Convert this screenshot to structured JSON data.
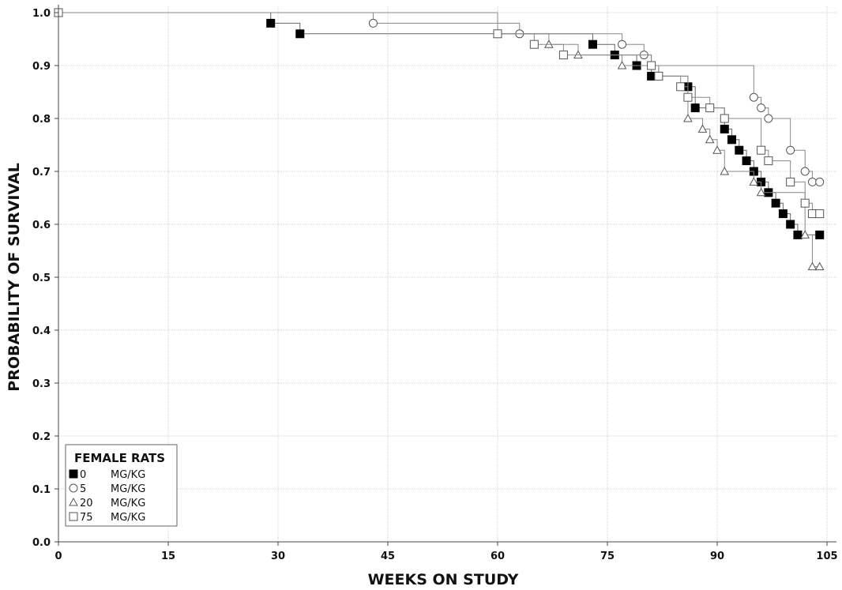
{
  "chart_data": {
    "type": "line",
    "title": "",
    "xlabel": "WEEKS ON STUDY",
    "ylabel": "PROBABILITY OF SURVIVAL",
    "xlim": [
      0,
      105
    ],
    "ylim": [
      0.0,
      1.0
    ],
    "xticks": [
      0,
      15,
      30,
      45,
      60,
      75,
      90,
      105
    ],
    "yticks": [
      "0.0",
      "0.1",
      "0.2",
      "0.3",
      "0.4",
      "0.5",
      "0.6",
      "0.7",
      "0.8",
      "0.9",
      "1.0"
    ],
    "grid": true,
    "legend": {
      "placement": "bottom-left",
      "title": "FEMALE RATS",
      "entries": [
        {
          "dose": "0",
          "unit": "MG/KG",
          "marker": "filled-square"
        },
        {
          "dose": "5",
          "unit": "MG/KG",
          "marker": "open-circle"
        },
        {
          "dose": "20",
          "unit": "MG/KG",
          "marker": "open-triangle"
        },
        {
          "dose": "75",
          "unit": "MG/KG",
          "marker": "open-square"
        }
      ]
    },
    "series": [
      {
        "marker": "filled-square",
        "color": "#000000",
        "x": [
          0,
          29,
          33,
          73,
          76,
          79,
          81,
          86,
          87,
          91,
          92,
          93,
          94,
          95,
          96,
          97,
          98,
          99,
          100,
          101,
          104
        ],
        "y": [
          1.0,
          0.98,
          0.96,
          0.94,
          0.92,
          0.9,
          0.88,
          0.86,
          0.82,
          0.78,
          0.76,
          0.74,
          0.72,
          0.7,
          0.68,
          0.66,
          0.64,
          0.62,
          0.6,
          0.58,
          0.58
        ]
      },
      {
        "marker": "open-circle",
        "color": "#888888",
        "x": [
          0,
          43,
          63,
          77,
          80,
          81,
          95,
          96,
          97,
          100,
          102,
          103,
          104
        ],
        "y": [
          1.0,
          0.98,
          0.96,
          0.94,
          0.92,
          0.9,
          0.84,
          0.82,
          0.8,
          0.74,
          0.7,
          0.68,
          0.68
        ]
      },
      {
        "marker": "open-triangle",
        "color": "#888888",
        "x": [
          0,
          60,
          67,
          71,
          77,
          82,
          86,
          88,
          89,
          90,
          91,
          95,
          96,
          102,
          103,
          104
        ],
        "y": [
          1.0,
          0.96,
          0.94,
          0.92,
          0.9,
          0.88,
          0.8,
          0.78,
          0.76,
          0.74,
          0.7,
          0.68,
          0.66,
          0.58,
          0.52,
          0.52
        ]
      },
      {
        "marker": "open-square",
        "color": "#888888",
        "x": [
          0,
          60,
          65,
          69,
          81,
          82,
          85,
          86,
          89,
          91,
          96,
          97,
          100,
          102,
          103,
          104
        ],
        "y": [
          1.0,
          0.96,
          0.94,
          0.92,
          0.9,
          0.88,
          0.86,
          0.84,
          0.82,
          0.8,
          0.74,
          0.72,
          0.68,
          0.64,
          0.62,
          0.62
        ]
      }
    ]
  }
}
